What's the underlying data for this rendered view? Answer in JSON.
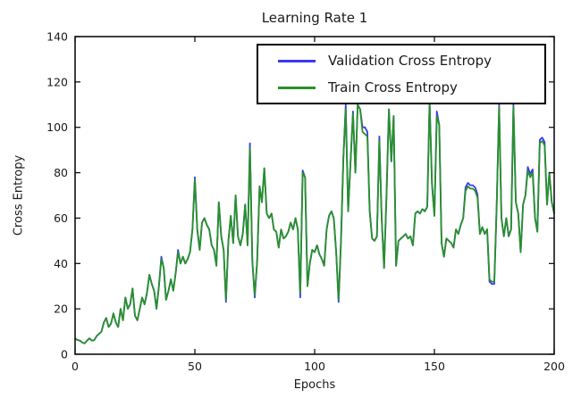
{
  "figure": {
    "background": "#ffffff",
    "axis_color": "#000000"
  },
  "chart_data": {
    "type": "line",
    "title": "Learning Rate 1",
    "xlabel": "Epochs",
    "ylabel": "Cross Entropy",
    "xlim": [
      0,
      200
    ],
    "ylim": [
      0,
      140
    ],
    "xticks": [
      0,
      50,
      100,
      150,
      200
    ],
    "yticks": [
      0,
      20,
      40,
      60,
      80,
      100,
      120,
      140
    ],
    "grid": false,
    "legend_position": "upper right",
    "series": [
      {
        "name": "Validation Cross Entropy",
        "color": "#3a3af2"
      },
      {
        "name": "Train Cross Entropy",
        "color": "#289128"
      }
    ],
    "points_format": "[epoch, validation_cross_entropy, train_cross_entropy]",
    "points": [
      [
        0,
        7,
        7
      ],
      [
        1,
        6.3,
        6.3
      ],
      [
        2,
        6,
        6
      ],
      [
        3,
        5.2,
        5.2
      ],
      [
        4,
        4.8,
        4.8
      ],
      [
        5,
        6,
        6
      ],
      [
        6,
        7,
        7
      ],
      [
        7,
        6,
        6
      ],
      [
        8,
        6.2,
        6.2
      ],
      [
        9,
        8,
        8
      ],
      [
        10,
        9,
        9
      ],
      [
        11,
        10,
        10
      ],
      [
        12,
        14,
        14
      ],
      [
        13,
        16,
        16
      ],
      [
        14,
        12,
        12
      ],
      [
        15,
        13.5,
        13.5
      ],
      [
        16,
        18,
        18
      ],
      [
        17,
        14,
        14
      ],
      [
        18,
        12,
        12
      ],
      [
        19,
        20,
        20
      ],
      [
        20,
        15,
        15
      ],
      [
        21,
        25,
        25
      ],
      [
        22,
        20,
        20
      ],
      [
        23,
        22,
        22
      ],
      [
        24,
        29,
        29
      ],
      [
        25,
        17,
        17
      ],
      [
        26,
        15,
        15
      ],
      [
        27,
        20,
        20
      ],
      [
        28,
        25,
        25
      ],
      [
        29,
        22,
        22
      ],
      [
        30,
        27,
        27
      ],
      [
        31,
        35,
        35
      ],
      [
        32,
        31,
        31
      ],
      [
        33,
        28,
        28
      ],
      [
        34,
        20,
        20
      ],
      [
        35,
        30,
        30
      ],
      [
        36,
        43,
        42
      ],
      [
        37,
        38,
        38
      ],
      [
        38,
        24,
        24
      ],
      [
        39,
        28,
        28
      ],
      [
        40,
        33,
        33
      ],
      [
        41,
        28,
        28
      ],
      [
        42,
        36,
        36
      ],
      [
        43,
        46,
        45
      ],
      [
        44,
        40,
        40
      ],
      [
        45,
        43,
        43
      ],
      [
        46,
        40,
        40
      ],
      [
        47,
        42,
        42
      ],
      [
        48,
        45,
        45
      ],
      [
        49,
        55,
        55
      ],
      [
        50,
        78,
        77
      ],
      [
        51,
        55,
        55
      ],
      [
        52,
        46,
        46
      ],
      [
        53,
        58,
        58
      ],
      [
        54,
        60,
        60
      ],
      [
        55,
        57,
        57
      ],
      [
        56,
        55,
        55
      ],
      [
        57,
        48,
        48
      ],
      [
        58,
        46,
        46
      ],
      [
        59,
        39,
        39
      ],
      [
        60,
        67,
        67
      ],
      [
        61,
        52,
        52
      ],
      [
        62,
        46,
        46
      ],
      [
        63,
        23,
        24
      ],
      [
        64,
        50,
        50
      ],
      [
        65,
        61,
        61
      ],
      [
        66,
        49,
        49
      ],
      [
        67,
        70,
        70
      ],
      [
        68,
        52,
        52
      ],
      [
        69,
        48,
        48
      ],
      [
        70,
        53,
        53
      ],
      [
        71,
        66,
        66
      ],
      [
        72,
        48,
        48
      ],
      [
        73,
        93,
        91
      ],
      [
        74,
        41,
        41
      ],
      [
        75,
        25,
        26
      ],
      [
        76,
        41,
        41
      ],
      [
        77,
        74,
        74
      ],
      [
        78,
        67,
        67
      ],
      [
        79,
        82,
        82
      ],
      [
        80,
        62,
        62
      ],
      [
        81,
        60,
        60
      ],
      [
        82,
        62,
        62
      ],
      [
        83,
        55,
        55
      ],
      [
        84,
        54,
        54
      ],
      [
        85,
        47,
        47
      ],
      [
        86,
        55,
        55
      ],
      [
        87,
        51,
        51
      ],
      [
        88,
        52,
        52
      ],
      [
        89,
        54,
        54
      ],
      [
        90,
        58,
        58
      ],
      [
        91,
        55,
        55
      ],
      [
        92,
        60,
        60
      ],
      [
        93,
        55,
        55
      ],
      [
        94,
        25,
        27
      ],
      [
        95,
        81,
        80
      ],
      [
        96,
        78,
        78
      ],
      [
        97,
        30,
        30
      ],
      [
        98,
        40,
        40
      ],
      [
        99,
        46,
        46
      ],
      [
        100,
        45,
        45
      ],
      [
        101,
        48,
        48
      ],
      [
        102,
        44,
        44
      ],
      [
        103,
        42,
        42
      ],
      [
        104,
        39,
        39
      ],
      [
        105,
        55,
        55
      ],
      [
        106,
        61,
        61
      ],
      [
        107,
        63,
        63
      ],
      [
        108,
        60,
        60
      ],
      [
        109,
        45,
        45
      ],
      [
        110,
        23,
        24
      ],
      [
        111,
        50,
        50
      ],
      [
        112,
        87,
        87
      ],
      [
        113,
        110,
        108
      ],
      [
        114,
        63,
        63
      ],
      [
        115,
        85,
        85
      ],
      [
        116,
        107,
        106
      ],
      [
        117,
        80,
        80
      ],
      [
        118,
        110,
        110
      ],
      [
        119,
        108,
        108
      ],
      [
        120,
        100,
        98
      ],
      [
        121,
        100,
        97
      ],
      [
        122,
        98,
        96
      ],
      [
        123,
        63,
        63
      ],
      [
        124,
        51,
        51
      ],
      [
        125,
        50,
        50
      ],
      [
        126,
        52,
        52
      ],
      [
        127,
        96,
        94
      ],
      [
        128,
        60,
        60
      ],
      [
        129,
        38,
        38
      ],
      [
        130,
        70,
        70
      ],
      [
        131,
        108,
        108
      ],
      [
        132,
        85,
        85
      ],
      [
        133,
        105,
        105
      ],
      [
        134,
        39,
        39
      ],
      [
        135,
        50,
        50
      ],
      [
        136,
        51,
        51
      ],
      [
        137,
        52,
        52
      ],
      [
        138,
        53,
        53
      ],
      [
        139,
        51,
        51
      ],
      [
        140,
        52,
        52
      ],
      [
        141,
        48,
        48
      ],
      [
        142,
        62,
        62
      ],
      [
        143,
        63,
        63
      ],
      [
        144,
        62,
        62
      ],
      [
        145,
        64,
        64
      ],
      [
        146,
        63,
        63
      ],
      [
        147,
        65,
        65
      ],
      [
        148,
        112,
        111
      ],
      [
        149,
        75,
        75
      ],
      [
        150,
        61,
        61
      ],
      [
        151,
        107,
        105
      ],
      [
        152,
        101,
        101
      ],
      [
        153,
        49,
        49
      ],
      [
        154,
        43,
        43
      ],
      [
        155,
        51,
        51
      ],
      [
        156,
        50,
        50
      ],
      [
        157,
        49,
        49
      ],
      [
        158,
        47,
        47
      ],
      [
        159,
        55,
        55
      ],
      [
        160,
        53,
        53
      ],
      [
        161,
        57,
        57
      ],
      [
        162,
        60,
        60
      ],
      [
        163,
        73.5,
        72
      ],
      [
        164,
        75.5,
        74
      ],
      [
        165,
        74.5,
        73
      ],
      [
        166,
        74.5,
        73
      ],
      [
        167,
        73.5,
        72
      ],
      [
        168,
        70.5,
        69
      ],
      [
        169,
        53,
        53
      ],
      [
        170,
        56,
        56
      ],
      [
        171,
        53,
        53
      ],
      [
        172,
        55,
        55
      ],
      [
        173,
        32,
        33
      ],
      [
        174,
        31,
        32
      ],
      [
        175,
        31,
        32
      ],
      [
        176,
        66,
        66
      ],
      [
        177,
        110,
        109
      ],
      [
        178,
        60,
        60
      ],
      [
        179,
        52,
        52
      ],
      [
        180,
        60,
        60
      ],
      [
        181,
        52,
        52
      ],
      [
        182,
        55,
        55
      ],
      [
        183,
        110,
        109
      ],
      [
        184,
        67,
        67
      ],
      [
        185,
        62,
        62
      ],
      [
        186,
        45,
        45
      ],
      [
        187,
        66,
        66
      ],
      [
        188,
        70,
        70
      ],
      [
        189,
        82.5,
        81
      ],
      [
        190,
        79.5,
        78
      ],
      [
        191,
        81.5,
        80
      ],
      [
        192,
        60,
        60
      ],
      [
        193,
        54,
        54
      ],
      [
        194,
        94.5,
        93
      ],
      [
        195,
        95.5,
        94
      ],
      [
        196,
        93.5,
        92
      ],
      [
        197,
        66,
        66
      ],
      [
        198,
        80,
        80
      ],
      [
        199,
        67,
        67
      ],
      [
        200,
        62,
        62
      ]
    ]
  }
}
